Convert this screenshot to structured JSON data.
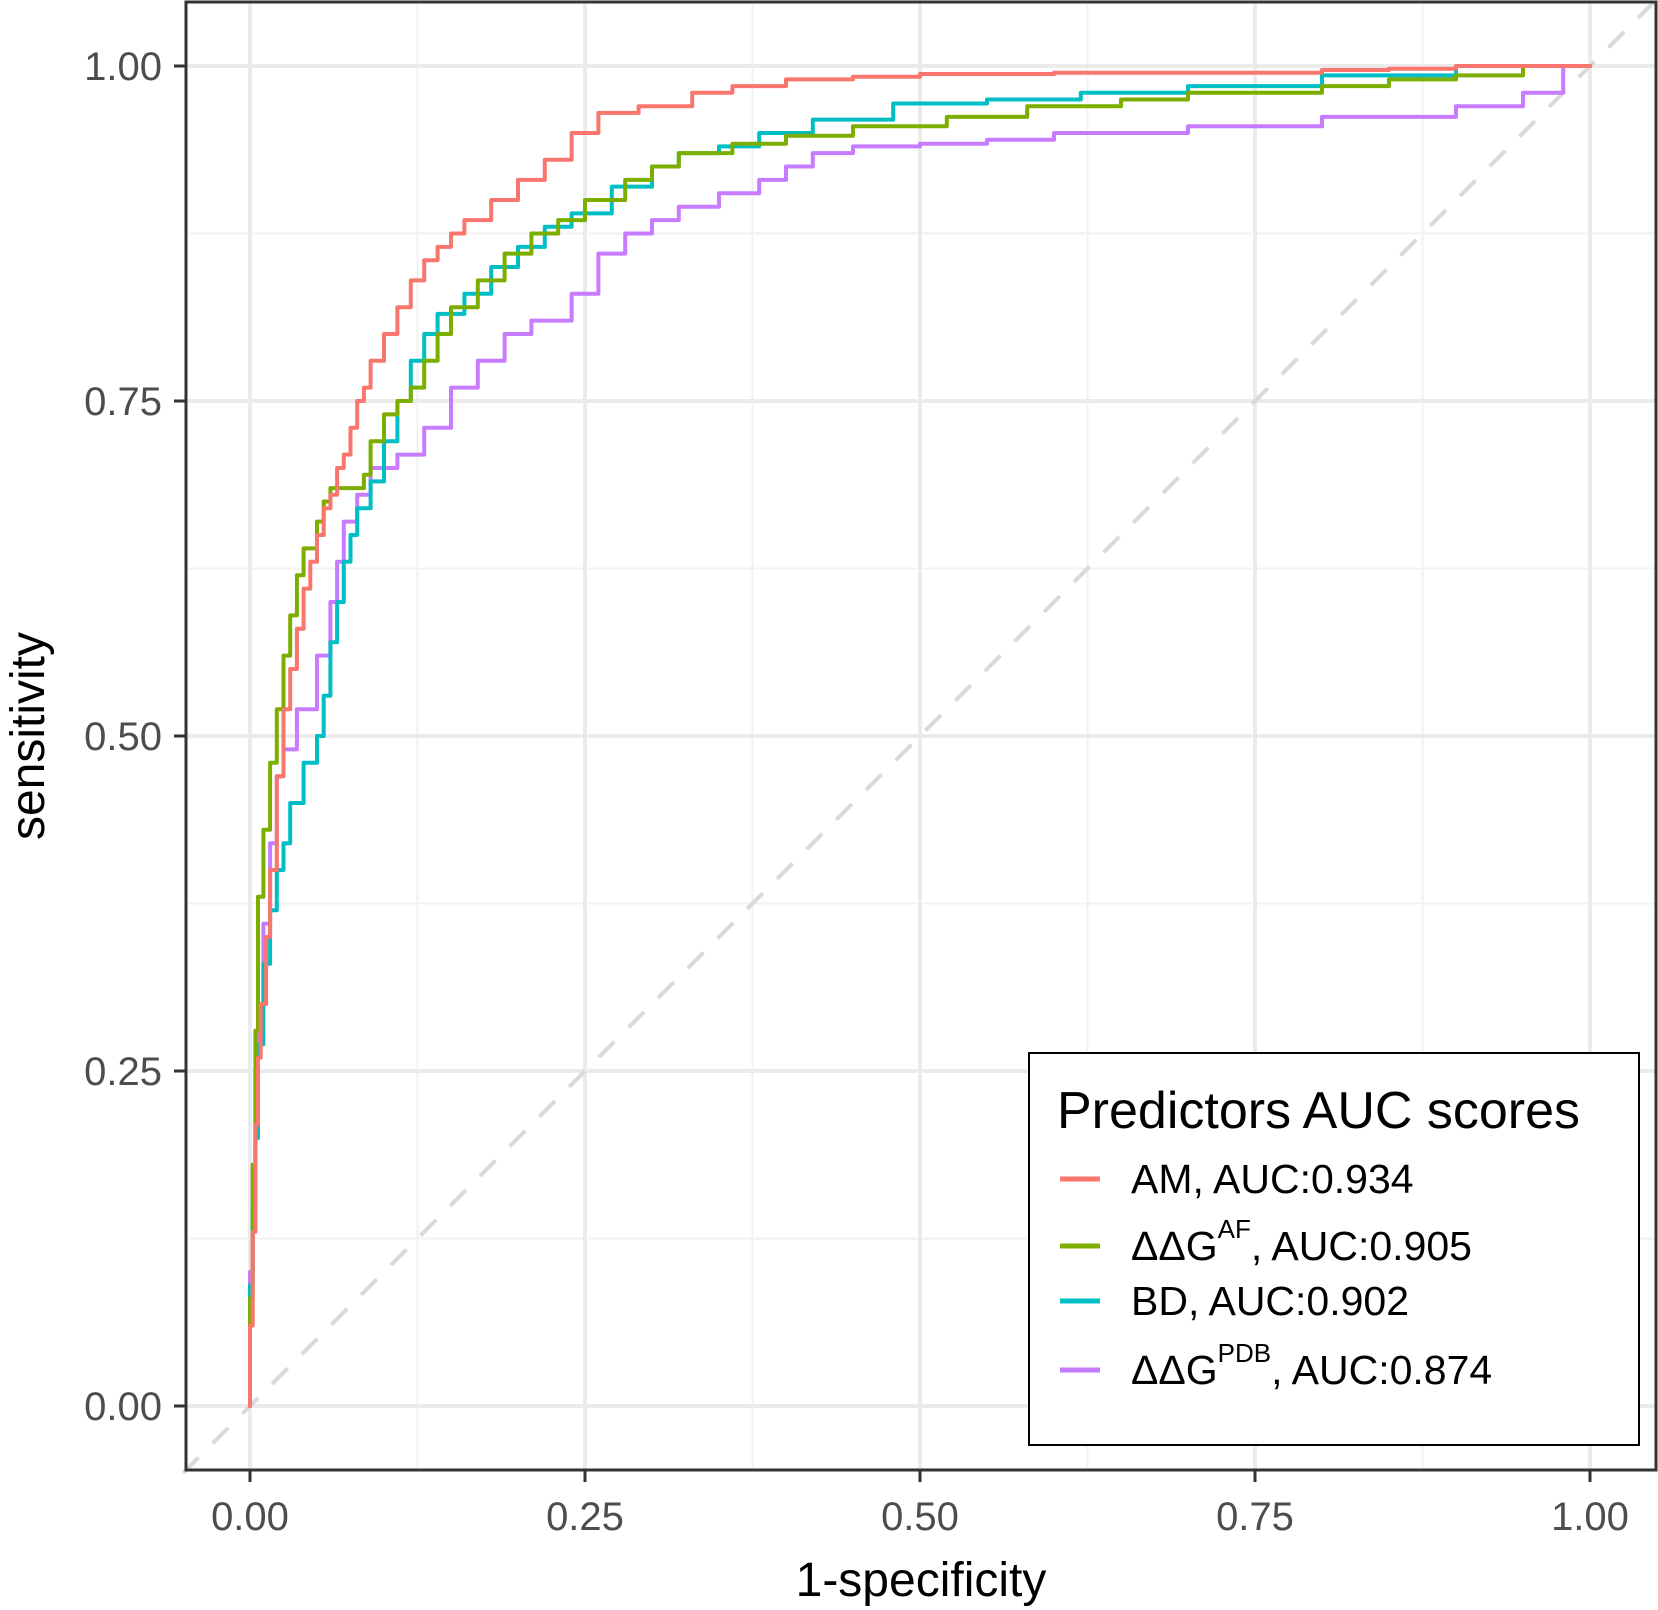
{
  "chart_data": {
    "type": "line",
    "xlabel": "1-specificity",
    "ylabel": "sensitivity",
    "xlim": [
      0,
      1
    ],
    "ylim": [
      0,
      1
    ],
    "x_ticks": [
      "0.00",
      "0.25",
      "0.50",
      "0.75",
      "1.00"
    ],
    "y_ticks": [
      "0.00",
      "0.25",
      "0.50",
      "0.75",
      "1.00"
    ],
    "grid": true,
    "reference_line": {
      "from": [
        0,
        0
      ],
      "to": [
        1,
        1
      ],
      "style": "dashed",
      "color": "#d9d9d9"
    },
    "legend": {
      "title": "Predictors AUC scores",
      "position": "bottom-right",
      "entries": [
        {
          "base": "AM, AUC:0.934",
          "sup": "",
          "rest": ""
        },
        {
          "base": "ΔΔG",
          "sup": "AF",
          "rest": ", AUC:0.905"
        },
        {
          "base": "BD, AUC:0.902",
          "sup": "",
          "rest": ""
        },
        {
          "base": "ΔΔG",
          "sup": "PDB",
          "rest": ", AUC:0.874"
        }
      ]
    },
    "series": [
      {
        "color": "#F8766D",
        "auc": 0.934,
        "points": [
          [
            0,
            0
          ],
          [
            0.002,
            0.06
          ],
          [
            0.004,
            0.13
          ],
          [
            0.006,
            0.21
          ],
          [
            0.008,
            0.26
          ],
          [
            0.012,
            0.3
          ],
          [
            0.015,
            0.35
          ],
          [
            0.02,
            0.4
          ],
          [
            0.025,
            0.47
          ],
          [
            0.03,
            0.52
          ],
          [
            0.035,
            0.55
          ],
          [
            0.04,
            0.58
          ],
          [
            0.045,
            0.61
          ],
          [
            0.05,
            0.63
          ],
          [
            0.055,
            0.65
          ],
          [
            0.06,
            0.67
          ],
          [
            0.065,
            0.68
          ],
          [
            0.07,
            0.7
          ],
          [
            0.075,
            0.71
          ],
          [
            0.08,
            0.73
          ],
          [
            0.085,
            0.75
          ],
          [
            0.09,
            0.76
          ],
          [
            0.1,
            0.78
          ],
          [
            0.11,
            0.8
          ],
          [
            0.12,
            0.82
          ],
          [
            0.13,
            0.84
          ],
          [
            0.14,
            0.855
          ],
          [
            0.15,
            0.865
          ],
          [
            0.16,
            0.875
          ],
          [
            0.18,
            0.885
          ],
          [
            0.2,
            0.9
          ],
          [
            0.22,
            0.915
          ],
          [
            0.24,
            0.93
          ],
          [
            0.26,
            0.95
          ],
          [
            0.29,
            0.965
          ],
          [
            0.33,
            0.97
          ],
          [
            0.36,
            0.98
          ],
          [
            0.4,
            0.985
          ],
          [
            0.45,
            0.99
          ],
          [
            0.5,
            0.992
          ],
          [
            0.6,
            0.994
          ],
          [
            0.7,
            0.995
          ],
          [
            0.8,
            0.995
          ],
          [
            0.85,
            0.997
          ],
          [
            0.9,
            0.998
          ],
          [
            1.0,
            1.0
          ]
        ]
      },
      {
        "color": "#7CAE00",
        "auc": 0.905,
        "points": [
          [
            0,
            0
          ],
          [
            0.002,
            0.08
          ],
          [
            0.004,
            0.18
          ],
          [
            0.006,
            0.28
          ],
          [
            0.01,
            0.38
          ],
          [
            0.015,
            0.43
          ],
          [
            0.02,
            0.48
          ],
          [
            0.025,
            0.52
          ],
          [
            0.03,
            0.56
          ],
          [
            0.035,
            0.59
          ],
          [
            0.04,
            0.62
          ],
          [
            0.05,
            0.64
          ],
          [
            0.055,
            0.66
          ],
          [
            0.06,
            0.675
          ],
          [
            0.065,
            0.685
          ],
          [
            0.085,
            0.685
          ],
          [
            0.09,
            0.695
          ],
          [
            0.1,
            0.72
          ],
          [
            0.11,
            0.74
          ],
          [
            0.12,
            0.75
          ],
          [
            0.13,
            0.76
          ],
          [
            0.14,
            0.78
          ],
          [
            0.15,
            0.8
          ],
          [
            0.17,
            0.82
          ],
          [
            0.19,
            0.84
          ],
          [
            0.21,
            0.86
          ],
          [
            0.23,
            0.875
          ],
          [
            0.25,
            0.885
          ],
          [
            0.28,
            0.9
          ],
          [
            0.3,
            0.915
          ],
          [
            0.32,
            0.925
          ],
          [
            0.36,
            0.935
          ],
          [
            0.4,
            0.942
          ],
          [
            0.45,
            0.948
          ],
          [
            0.52,
            0.955
          ],
          [
            0.58,
            0.962
          ],
          [
            0.65,
            0.97
          ],
          [
            0.7,
            0.975
          ],
          [
            0.8,
            0.98
          ],
          [
            0.85,
            0.985
          ],
          [
            0.9,
            0.99
          ],
          [
            0.95,
            0.993
          ],
          [
            1.0,
            1.0
          ]
        ]
      },
      {
        "color": "#00BFC4",
        "auc": 0.902,
        "points": [
          [
            0,
            0
          ],
          [
            0.002,
            0.09
          ],
          [
            0.004,
            0.15
          ],
          [
            0.006,
            0.2
          ],
          [
            0.01,
            0.27
          ],
          [
            0.015,
            0.33
          ],
          [
            0.02,
            0.37
          ],
          [
            0.025,
            0.4
          ],
          [
            0.03,
            0.42
          ],
          [
            0.04,
            0.45
          ],
          [
            0.05,
            0.48
          ],
          [
            0.055,
            0.5
          ],
          [
            0.06,
            0.53
          ],
          [
            0.065,
            0.57
          ],
          [
            0.07,
            0.6
          ],
          [
            0.075,
            0.63
          ],
          [
            0.08,
            0.65
          ],
          [
            0.09,
            0.67
          ],
          [
            0.1,
            0.69
          ],
          [
            0.11,
            0.72
          ],
          [
            0.12,
            0.75
          ],
          [
            0.13,
            0.78
          ],
          [
            0.14,
            0.8
          ],
          [
            0.16,
            0.815
          ],
          [
            0.18,
            0.83
          ],
          [
            0.2,
            0.85
          ],
          [
            0.22,
            0.865
          ],
          [
            0.24,
            0.88
          ],
          [
            0.27,
            0.89
          ],
          [
            0.3,
            0.91
          ],
          [
            0.32,
            0.925
          ],
          [
            0.35,
            0.935
          ],
          [
            0.38,
            0.94
          ],
          [
            0.42,
            0.95
          ],
          [
            0.48,
            0.96
          ],
          [
            0.55,
            0.972
          ],
          [
            0.62,
            0.975
          ],
          [
            0.7,
            0.98
          ],
          [
            0.8,
            0.985
          ],
          [
            0.9,
            0.993
          ],
          [
            1.0,
            1.0
          ]
        ]
      },
      {
        "color": "#C77CFF",
        "auc": 0.874,
        "points": [
          [
            0,
            0
          ],
          [
            0.002,
            0.1
          ],
          [
            0.004,
            0.18
          ],
          [
            0.006,
            0.25
          ],
          [
            0.01,
            0.3
          ],
          [
            0.015,
            0.36
          ],
          [
            0.02,
            0.42
          ],
          [
            0.025,
            0.47
          ],
          [
            0.035,
            0.49
          ],
          [
            0.05,
            0.52
          ],
          [
            0.06,
            0.56
          ],
          [
            0.065,
            0.6
          ],
          [
            0.07,
            0.63
          ],
          [
            0.08,
            0.66
          ],
          [
            0.09,
            0.68
          ],
          [
            0.11,
            0.7
          ],
          [
            0.13,
            0.71
          ],
          [
            0.15,
            0.73
          ],
          [
            0.17,
            0.76
          ],
          [
            0.19,
            0.78
          ],
          [
            0.21,
            0.8
          ],
          [
            0.24,
            0.81
          ],
          [
            0.26,
            0.83
          ],
          [
            0.28,
            0.86
          ],
          [
            0.3,
            0.875
          ],
          [
            0.32,
            0.885
          ],
          [
            0.35,
            0.895
          ],
          [
            0.38,
            0.905
          ],
          [
            0.4,
            0.915
          ],
          [
            0.42,
            0.925
          ],
          [
            0.45,
            0.935
          ],
          [
            0.5,
            0.94
          ],
          [
            0.55,
            0.942
          ],
          [
            0.6,
            0.945
          ],
          [
            0.7,
            0.95
          ],
          [
            0.8,
            0.955
          ],
          [
            0.9,
            0.962
          ],
          [
            0.95,
            0.97
          ],
          [
            0.98,
            0.98
          ],
          [
            1.0,
            1.0
          ]
        ]
      }
    ]
  }
}
